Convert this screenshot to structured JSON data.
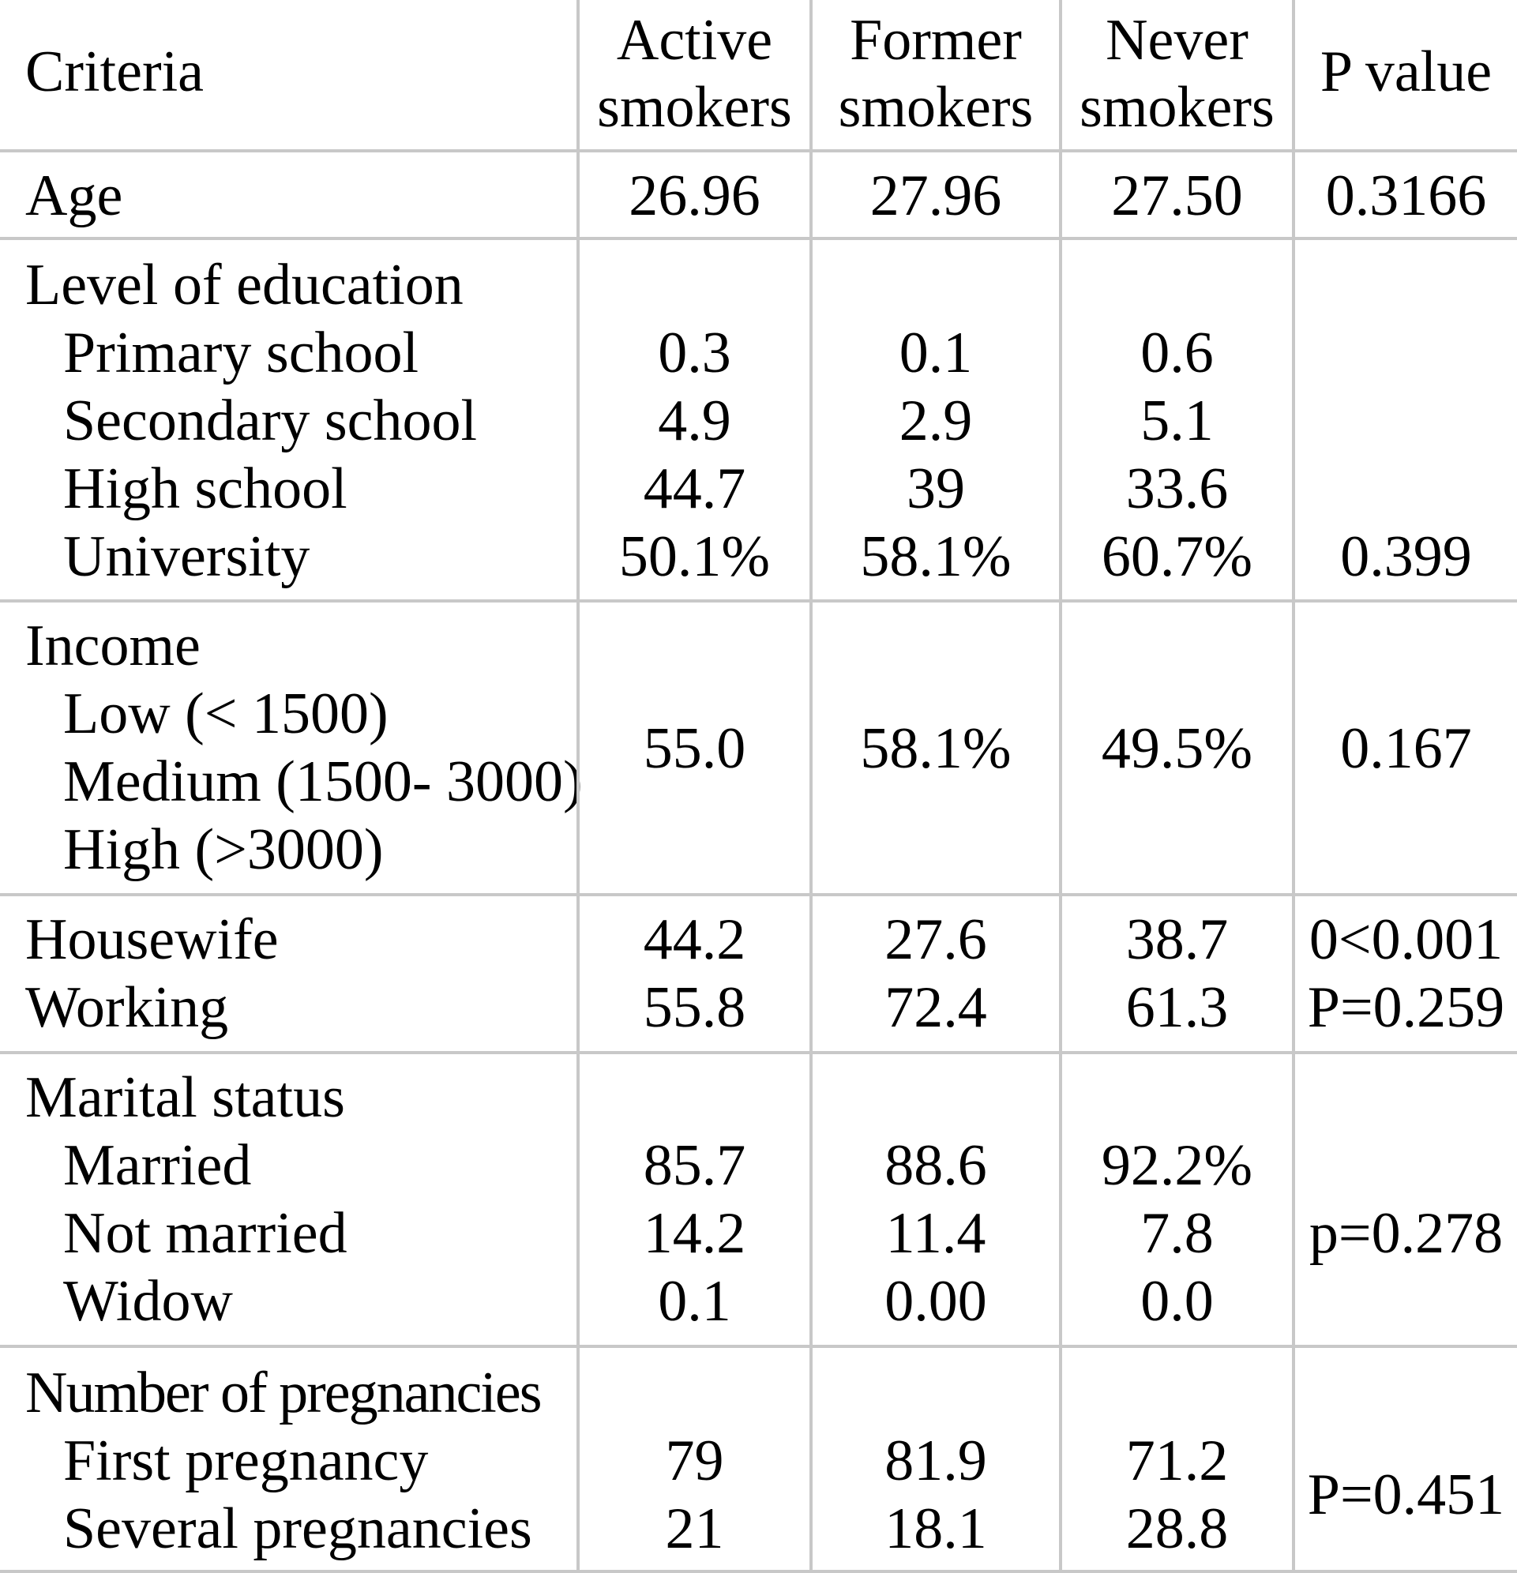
{
  "table": {
    "headers": {
      "criteria": "Criteria",
      "active_line1": "Active",
      "active_line2": "smokers",
      "former_line1": "Former",
      "former_line2": "smokers",
      "never_line1": "Never",
      "never_line2": "smokers",
      "pvalue": "P value"
    },
    "age": {
      "label": "Age",
      "active": "26.96",
      "former": "27.96",
      "never": "27.50",
      "p": "0.3166"
    },
    "education": {
      "label": "Level of education",
      "rows": [
        {
          "label": "Primary school",
          "active": "0.3",
          "former": "0.1",
          "never": "0.6"
        },
        {
          "label": "Secondary school",
          "active": "4.9",
          "former": "2.9",
          "never": "5.1"
        },
        {
          "label": "High school",
          "active": "44.7",
          "former": "39",
          "never": "33.6"
        },
        {
          "label": "University",
          "active": "50.1%",
          "former": "58.1%",
          "never": "60.7%"
        }
      ],
      "p": "0.399"
    },
    "income": {
      "label": "Income",
      "rows": [
        "Low (< 1500)",
        "Medium (1500- 3000)",
        "High (>3000)"
      ],
      "active": "55.0",
      "former": "58.1%",
      "never": "49.5%",
      "p": "0.167"
    },
    "occupation": {
      "rows": [
        {
          "label": "Housewife",
          "active": "44.2",
          "former": "27.6",
          "never": "38.7",
          "p": "0<0.001"
        },
        {
          "label": "Working",
          "active": "55.8",
          "former": "72.4",
          "never": "61.3",
          "p": "P=0.259"
        }
      ]
    },
    "marital": {
      "label": "Marital status",
      "rows": [
        {
          "label": "Married",
          "active": "85.7",
          "former": "88.6",
          "never": "92.2%"
        },
        {
          "label": "Not married",
          "active": "14.2",
          "former": "11.4",
          "never": "7.8"
        },
        {
          "label": "Widow",
          "active": "0.1",
          "former": "0.00",
          "never": "0.0"
        }
      ],
      "p": "p=0.278"
    },
    "pregnancies": {
      "label": "Number of pregnancies",
      "rows": [
        {
          "label": "First pregnancy",
          "active": "79",
          "former": "81.9",
          "never": "71.2"
        },
        {
          "label": "Several pregnancies",
          "active": "21",
          "former": "18.1",
          "never": "28.8"
        }
      ],
      "p": "P=0.451"
    }
  }
}
